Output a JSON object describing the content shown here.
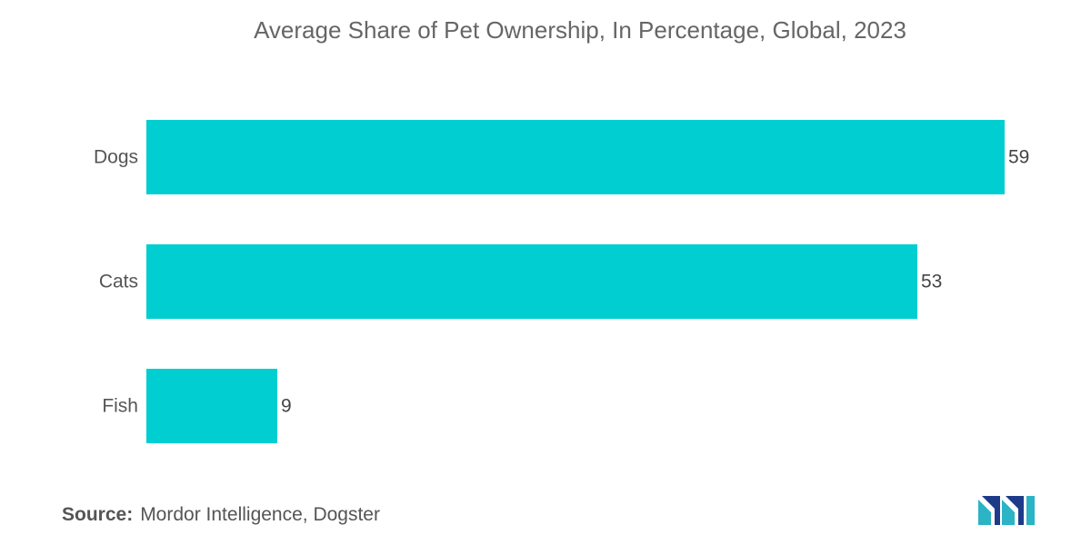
{
  "chart_data": {
    "type": "bar",
    "orientation": "horizontal",
    "title": "Average Share of Pet Ownership, In Percentage, Global, 2023",
    "categories": [
      "Dogs",
      "Cats",
      "Fish"
    ],
    "values": [
      59,
      53,
      9
    ],
    "xlim": [
      0,
      60
    ],
    "grid": false,
    "bar_color": "#00CED1"
  },
  "footer": {
    "source_label": "Source:",
    "source_text": "Mordor Intelligence, Dogster"
  },
  "brand": {
    "logo_icon": "mordor-intelligence-logo-icon",
    "colors": [
      "#2bb3c6",
      "#1e3a8a"
    ]
  }
}
